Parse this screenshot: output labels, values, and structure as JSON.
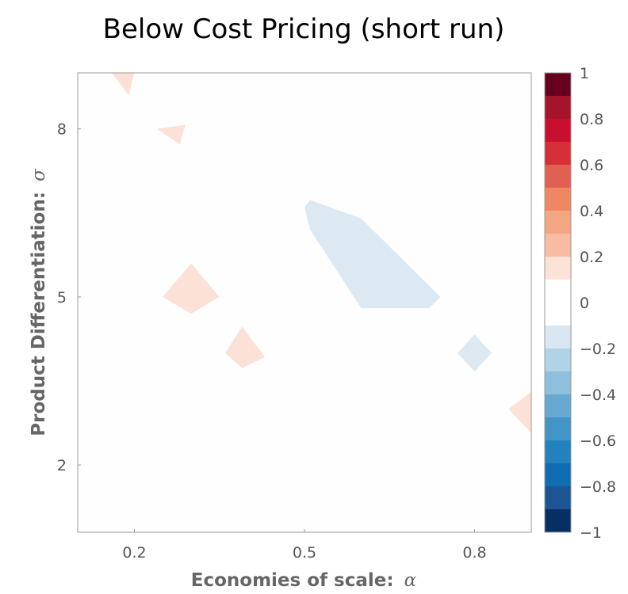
{
  "chart_data": {
    "type": "heatmap",
    "title": "Below Cost Pricing (short run)",
    "xlabel": "Economies of scale:",
    "xlabel_symbol": "α",
    "ylabel": "Product Differentiation:",
    "ylabel_symbol": "σ",
    "xlim": [
      0.1,
      0.9
    ],
    "ylim": [
      0.8,
      9.0
    ],
    "x_ticks": [
      0.2,
      0.5,
      0.8
    ],
    "x_tick_labels": [
      "0.2",
      "0.5",
      "0.8"
    ],
    "y_ticks": [
      2,
      5,
      8
    ],
    "y_tick_labels": [
      "2",
      "5",
      "8"
    ],
    "grid": false,
    "colorbar": {
      "min": -1,
      "max": 1,
      "tick_values": [
        1,
        0.8,
        0.6,
        0.4,
        0.2,
        0,
        -0.2,
        -0.4,
        -0.6,
        -0.8,
        -1
      ],
      "tick_labels": [
        "1",
        "0.8",
        "0.6",
        "0.4",
        "0.2",
        "0",
        "−0.2",
        "−0.4",
        "−0.6",
        "−0.8",
        "−1"
      ],
      "levels": [
        {
          "from": 0.9,
          "to": 1.0,
          "color": "#67001f"
        },
        {
          "from": 0.8,
          "to": 0.9,
          "color": "#a51429"
        },
        {
          "from": 0.7,
          "to": 0.8,
          "color": "#c8102e"
        },
        {
          "from": 0.6,
          "to": 0.7,
          "color": "#d62f37"
        },
        {
          "from": 0.5,
          "to": 0.6,
          "color": "#e06152"
        },
        {
          "from": 0.4,
          "to": 0.5,
          "color": "#ef8862"
        },
        {
          "from": 0.3,
          "to": 0.4,
          "color": "#f4a582"
        },
        {
          "from": 0.2,
          "to": 0.3,
          "color": "#f7bca1"
        },
        {
          "from": 0.1,
          "to": 0.2,
          "color": "#fde2d7"
        },
        {
          "from": -0.1,
          "to": 0.1,
          "color": "#ffffff"
        },
        {
          "from": -0.2,
          "to": -0.1,
          "color": "#d8e7f1"
        },
        {
          "from": -0.3,
          "to": -0.2,
          "color": "#b1d3e6"
        },
        {
          "from": -0.4,
          "to": -0.3,
          "color": "#8ec0dd"
        },
        {
          "from": -0.5,
          "to": -0.4,
          "color": "#67a9d0"
        },
        {
          "from": -0.6,
          "to": -0.5,
          "color": "#4395c6"
        },
        {
          "from": -0.7,
          "to": -0.6,
          "color": "#2381be"
        },
        {
          "from": -0.8,
          "to": -0.7,
          "color": "#106db1"
        },
        {
          "from": -0.9,
          "to": -0.8,
          "color": "#1c5494"
        },
        {
          "from": -1.0,
          "to": -0.9,
          "color": "#053061"
        }
      ]
    },
    "regions": [
      {
        "name": "top-left",
        "value": 0.15,
        "color": "#fbe1d6",
        "points": [
          [
            0.16,
            9.0
          ],
          [
            0.2,
            9.0
          ],
          [
            0.19,
            8.6
          ]
        ]
      },
      {
        "name": "upper-left",
        "value": 0.15,
        "color": "#fbe1d6",
        "points": [
          [
            0.24,
            8.0
          ],
          [
            0.29,
            8.07
          ],
          [
            0.28,
            7.72
          ]
        ]
      },
      {
        "name": "center-left",
        "value": 0.15,
        "color": "#fbe1d6",
        "points": [
          [
            0.25,
            5.0
          ],
          [
            0.3,
            5.6
          ],
          [
            0.35,
            5.0
          ],
          [
            0.3,
            4.7
          ]
        ]
      },
      {
        "name": "lower-left",
        "value": 0.15,
        "color": "#fbe1d6",
        "points": [
          [
            0.36,
            4.0
          ],
          [
            0.39,
            4.47
          ],
          [
            0.43,
            3.93
          ],
          [
            0.39,
            3.73
          ]
        ]
      },
      {
        "name": "center-blue",
        "value": -0.15,
        "color": "#dce9f2",
        "points": [
          [
            0.5,
            6.6
          ],
          [
            0.51,
            6.2
          ],
          [
            0.6,
            4.8
          ],
          [
            0.72,
            4.8
          ],
          [
            0.74,
            5.0
          ],
          [
            0.6,
            6.4
          ],
          [
            0.51,
            6.73
          ]
        ]
      },
      {
        "name": "right-blue",
        "value": -0.15,
        "color": "#dce9f2",
        "points": [
          [
            0.77,
            4.0
          ],
          [
            0.8,
            4.33
          ],
          [
            0.83,
            4.0
          ],
          [
            0.8,
            3.67
          ]
        ]
      },
      {
        "name": "bottom-right",
        "value": 0.15,
        "color": "#fbe1d6",
        "points": [
          [
            0.86,
            3.0
          ],
          [
            0.9,
            3.3
          ],
          [
            0.9,
            2.57
          ]
        ]
      }
    ]
  }
}
